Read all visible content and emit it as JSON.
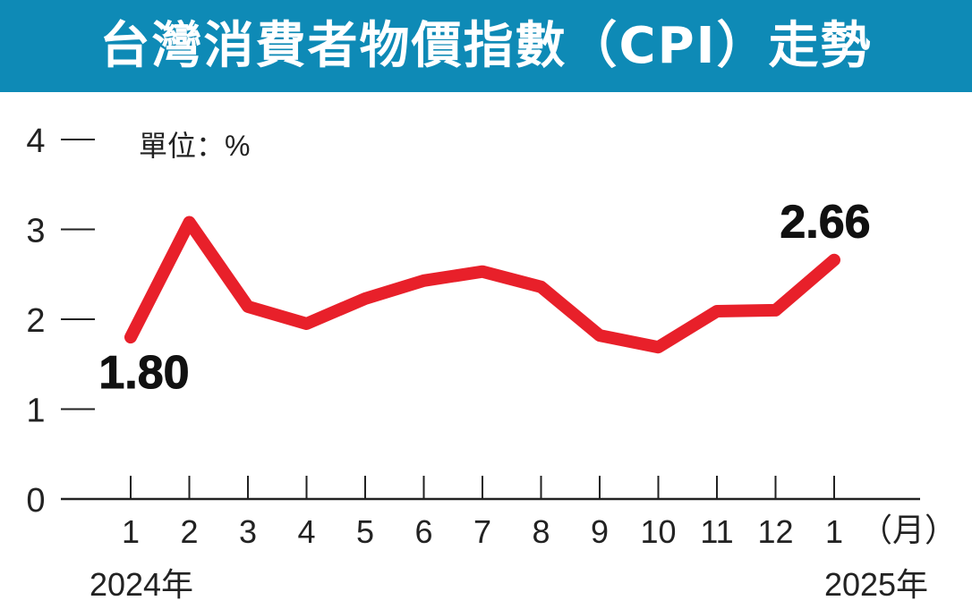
{
  "title": "台灣消費者物價指數（CPI）走勢",
  "colors": {
    "title_background": "#0e8ab6",
    "title_text": "#ffffff",
    "line": "#e8202a",
    "axis": "#222222"
  },
  "chart_data": {
    "type": "line",
    "unit_label": "單位：%",
    "categories": [
      "1",
      "2",
      "3",
      "4",
      "5",
      "6",
      "7",
      "8",
      "9",
      "10",
      "11",
      "12",
      "1"
    ],
    "x_unit_label": "（月）",
    "year_labels": [
      "2024年",
      "2025年"
    ],
    "y_ticks": [
      "0",
      "1",
      "2",
      "3",
      "4"
    ],
    "ylim": [
      0,
      4
    ],
    "series": [
      {
        "values": [
          1.8,
          3.08,
          2.14,
          1.95,
          2.23,
          2.43,
          2.53,
          2.36,
          1.82,
          1.69,
          2.09,
          2.1,
          2.66
        ]
      }
    ],
    "annotations": [
      {
        "point_index": 0,
        "text": "1.80"
      },
      {
        "point_index": 12,
        "text": "2.66"
      }
    ],
    "grid": false,
    "legend": "none"
  }
}
